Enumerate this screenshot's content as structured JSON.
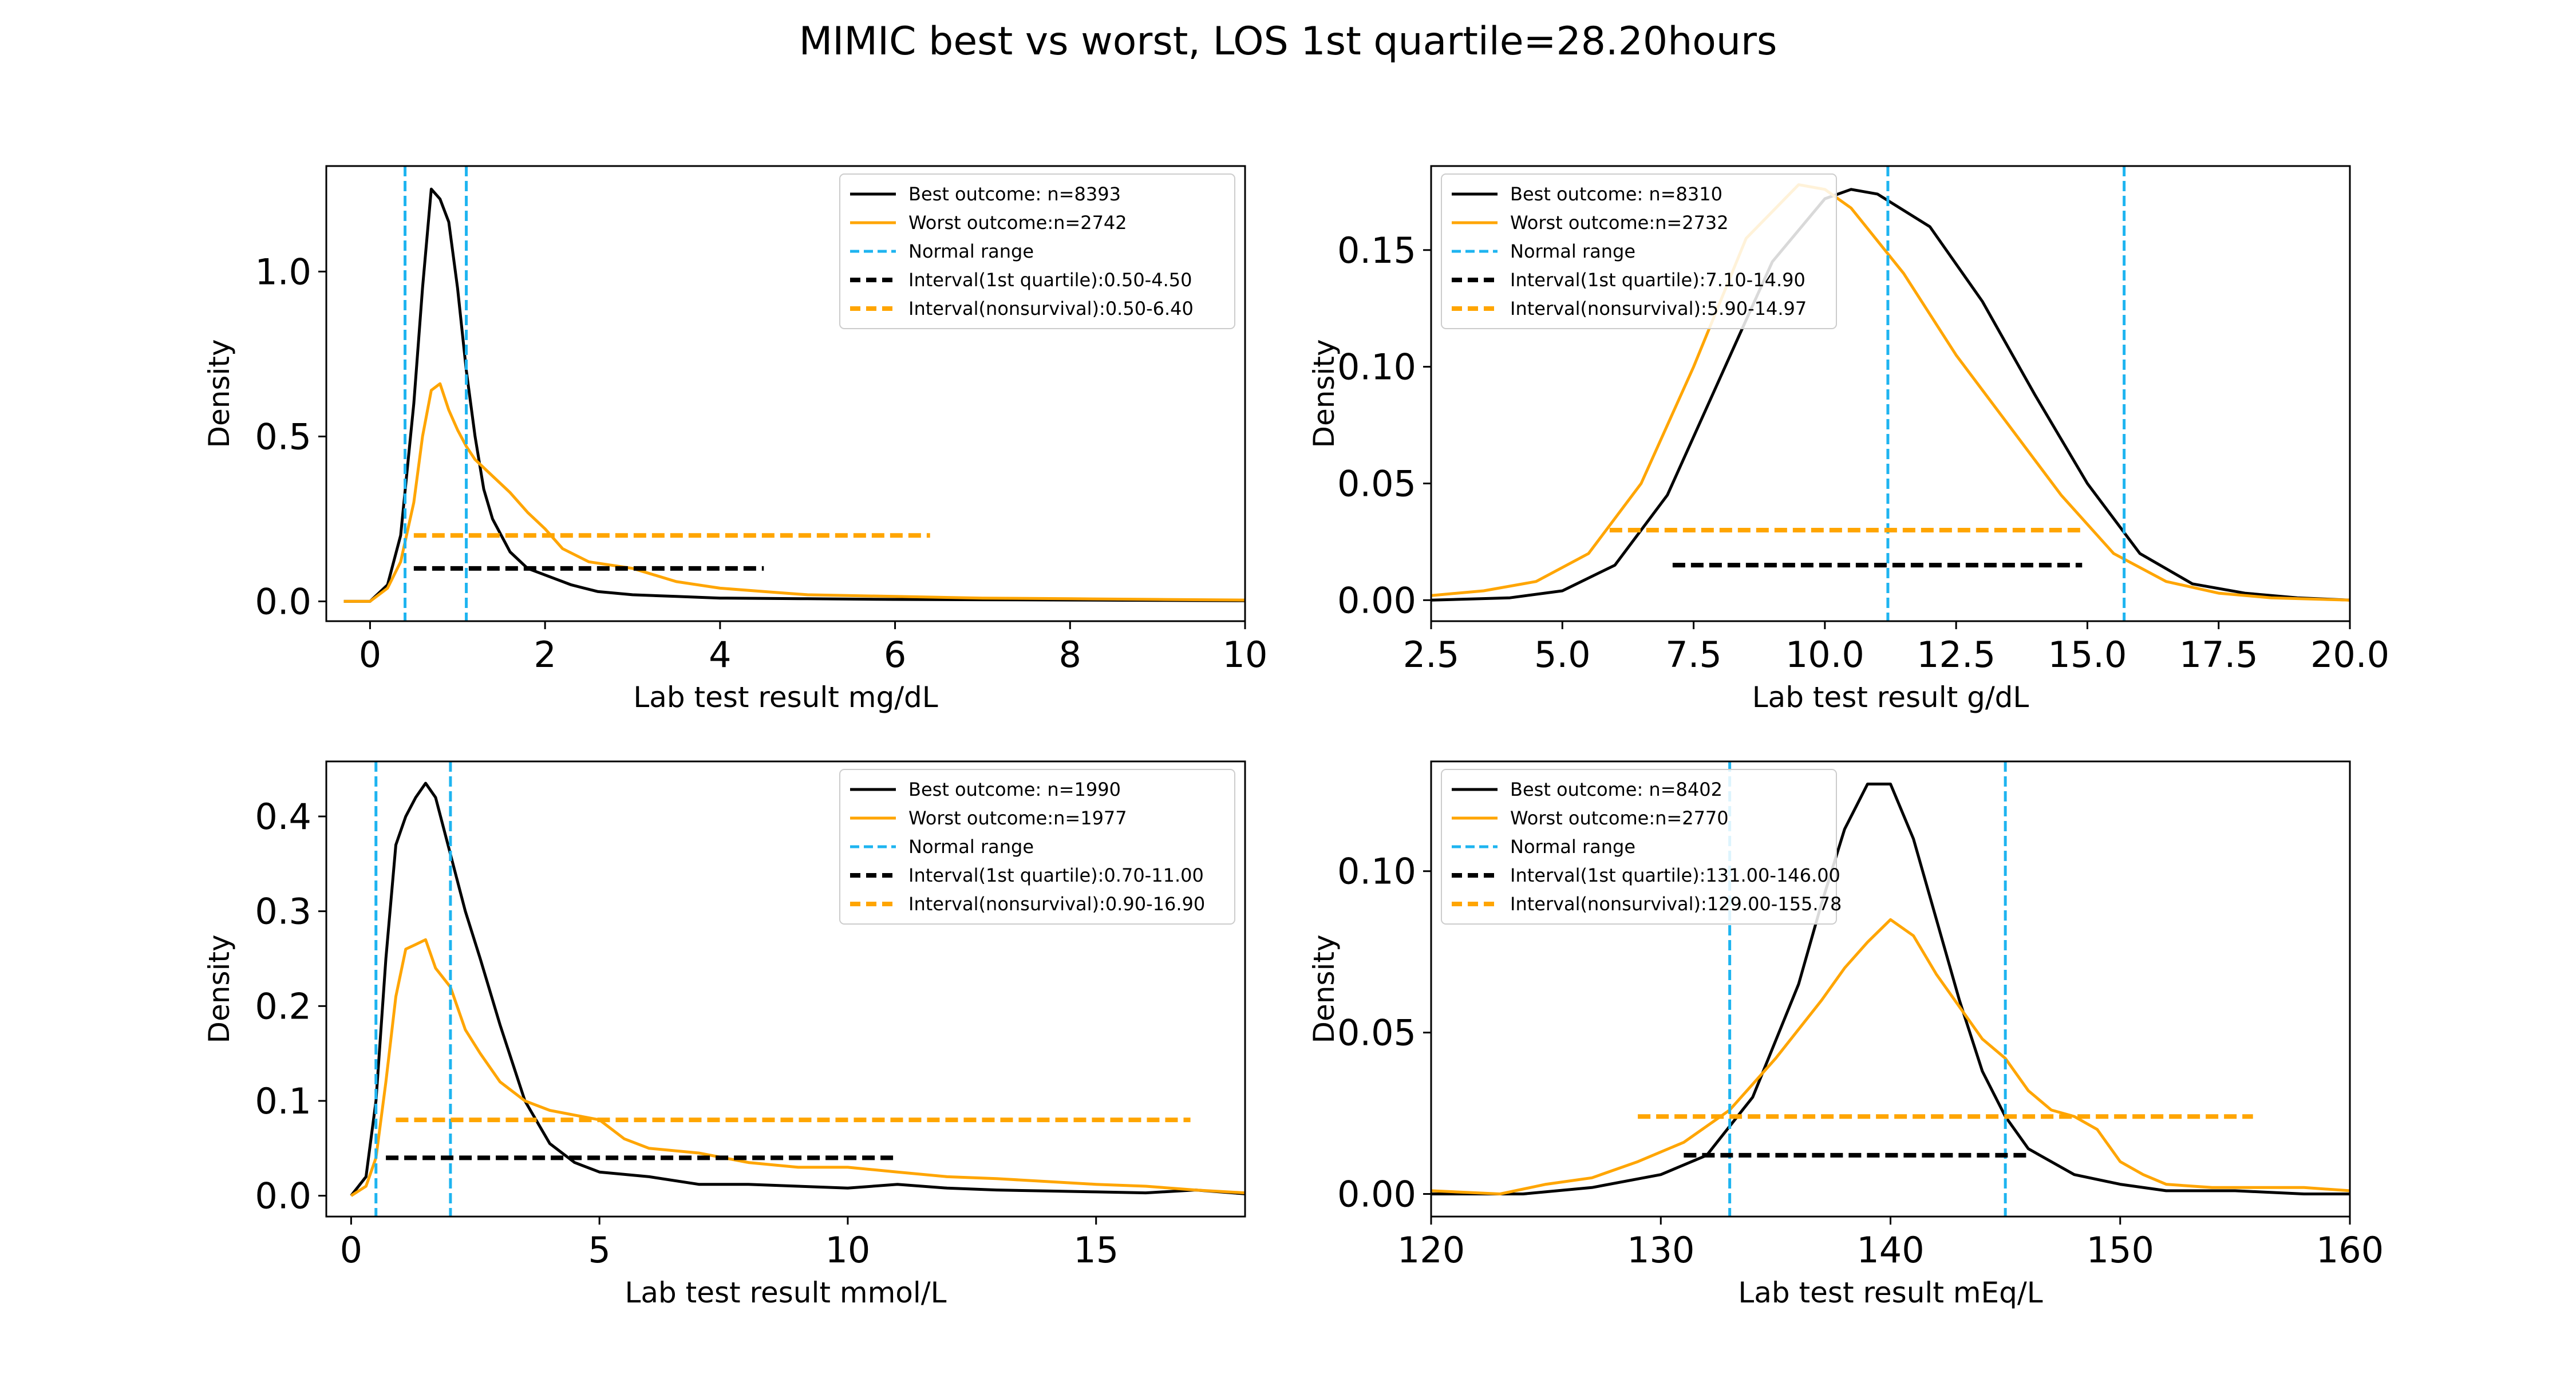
{
  "figure": {
    "title": "MIMIC best vs worst, LOS 1st quartile=28.20hours"
  },
  "colors": {
    "best": "#000000",
    "worst": "#FFA500",
    "normal": "#1EB4F0",
    "interval_best": "#000000",
    "interval_worst": "#FFA500"
  },
  "chart_data": [
    {
      "type": "line",
      "xlabel": "Lab test result mg/dL",
      "ylabel": "Density",
      "xlim": [
        -0.5,
        10
      ],
      "ylim": [
        -0.06,
        1.32
      ],
      "xticks": [
        0,
        2,
        4,
        6,
        8,
        10
      ],
      "yticks": [
        0.0,
        0.5,
        1.0
      ],
      "xtick_labels": [
        "0",
        "2",
        "4",
        "6",
        "8",
        "10"
      ],
      "ytick_labels": [
        "0.0",
        "0.5",
        "1.0"
      ],
      "legend_position": "top-right",
      "series": [
        {
          "name": "Best outcome: n=8393",
          "color_key": "best",
          "x": [
            -0.3,
            0.0,
            0.2,
            0.35,
            0.5,
            0.6,
            0.7,
            0.8,
            0.9,
            1.0,
            1.1,
            1.2,
            1.3,
            1.4,
            1.6,
            1.8,
            2.0,
            2.3,
            2.6,
            3.0,
            3.5,
            4.0,
            5.0,
            6.0,
            7.0,
            8.0,
            9.0,
            10.0
          ],
          "y": [
            0.0,
            0.0,
            0.05,
            0.2,
            0.6,
            0.95,
            1.25,
            1.22,
            1.15,
            0.95,
            0.7,
            0.5,
            0.34,
            0.25,
            0.15,
            0.1,
            0.08,
            0.05,
            0.03,
            0.02,
            0.015,
            0.01,
            0.008,
            0.006,
            0.005,
            0.004,
            0.003,
            0.002
          ]
        },
        {
          "name": "Worst outcome:n=2742",
          "color_key": "worst",
          "x": [
            -0.3,
            0.0,
            0.2,
            0.35,
            0.5,
            0.6,
            0.7,
            0.8,
            0.9,
            1.0,
            1.1,
            1.2,
            1.4,
            1.6,
            1.8,
            2.0,
            2.2,
            2.5,
            3.0,
            3.5,
            4.0,
            4.5,
            5.0,
            6.0,
            7.0,
            8.0,
            9.0,
            10.0
          ],
          "y": [
            0.0,
            0.0,
            0.04,
            0.12,
            0.3,
            0.5,
            0.64,
            0.66,
            0.58,
            0.52,
            0.47,
            0.43,
            0.38,
            0.33,
            0.27,
            0.22,
            0.16,
            0.12,
            0.1,
            0.06,
            0.04,
            0.03,
            0.02,
            0.015,
            0.01,
            0.008,
            0.006,
            0.004
          ]
        },
        {
          "name": "Normal range",
          "kind": "vline",
          "color_key": "normal",
          "positions": [
            0.4,
            1.1
          ]
        },
        {
          "name": "Interval(1st quartile):0.50-4.50",
          "kind": "hline",
          "color_key": "interval_best",
          "y": 0.1,
          "x_range": [
            0.5,
            4.5
          ]
        },
        {
          "name": "Interval(nonsurvival):0.50-6.40",
          "kind": "hline",
          "color_key": "interval_worst",
          "y": 0.2,
          "x_range": [
            0.5,
            6.4
          ]
        }
      ]
    },
    {
      "type": "line",
      "xlabel": "Lab test result g/dL",
      "ylabel": "Density",
      "xlim": [
        2.5,
        20.0
      ],
      "ylim": [
        -0.009,
        0.186
      ],
      "xticks": [
        2.5,
        5.0,
        7.5,
        10.0,
        12.5,
        15.0,
        17.5,
        20.0
      ],
      "yticks": [
        0.0,
        0.05,
        0.1,
        0.15
      ],
      "xtick_labels": [
        "2.5",
        "5.0",
        "7.5",
        "10.0",
        "12.5",
        "15.0",
        "17.5",
        "20.0"
      ],
      "ytick_labels": [
        "0.00",
        "0.05",
        "0.10",
        "0.15"
      ],
      "legend_position": "top-left",
      "series": [
        {
          "name": "Best outcome: n=8310",
          "color_key": "best",
          "x": [
            2.5,
            4.0,
            5.0,
            6.0,
            7.0,
            8.0,
            9.0,
            10.0,
            10.5,
            11.0,
            12.0,
            13.0,
            14.0,
            15.0,
            16.0,
            17.0,
            18.0,
            19.0,
            20.0
          ],
          "y": [
            0.0,
            0.001,
            0.004,
            0.015,
            0.045,
            0.095,
            0.145,
            0.172,
            0.176,
            0.174,
            0.16,
            0.128,
            0.088,
            0.05,
            0.02,
            0.007,
            0.003,
            0.001,
            0.0
          ]
        },
        {
          "name": "Worst outcome:n=2732",
          "color_key": "worst",
          "x": [
            2.5,
            3.5,
            4.5,
            5.5,
            6.5,
            7.5,
            8.5,
            9.5,
            10.0,
            10.5,
            11.5,
            12.5,
            13.5,
            14.5,
            15.5,
            16.5,
            17.5,
            18.5,
            20.0
          ],
          "y": [
            0.002,
            0.004,
            0.008,
            0.02,
            0.05,
            0.1,
            0.155,
            0.178,
            0.176,
            0.168,
            0.14,
            0.105,
            0.075,
            0.045,
            0.02,
            0.008,
            0.003,
            0.001,
            0.0
          ]
        },
        {
          "name": "Normal range",
          "kind": "vline",
          "color_key": "normal",
          "positions": [
            11.2,
            15.7
          ]
        },
        {
          "name": "Interval(1st quartile):7.10-14.90",
          "kind": "hline",
          "color_key": "interval_best",
          "y": 0.015,
          "x_range": [
            7.1,
            14.9
          ]
        },
        {
          "name": "Interval(nonsurvival):5.90-14.97",
          "kind": "hline",
          "color_key": "interval_worst",
          "y": 0.03,
          "x_range": [
            5.9,
            14.97
          ]
        }
      ]
    },
    {
      "type": "line",
      "xlabel": "Lab test result mmol/L",
      "ylabel": "Density",
      "xlim": [
        -0.5,
        18
      ],
      "ylim": [
        -0.022,
        0.458
      ],
      "xticks": [
        0,
        5,
        10,
        15
      ],
      "yticks": [
        0.0,
        0.1,
        0.2,
        0.3,
        0.4
      ],
      "xtick_labels": [
        "0",
        "5",
        "10",
        "15"
      ],
      "ytick_labels": [
        "0.0",
        "0.1",
        "0.2",
        "0.3",
        "0.4"
      ],
      "legend_position": "top-right",
      "series": [
        {
          "name": "Best outcome: n=1990",
          "color_key": "best",
          "x": [
            0.0,
            0.3,
            0.5,
            0.7,
            0.9,
            1.1,
            1.3,
            1.5,
            1.7,
            2.0,
            2.3,
            2.6,
            3.0,
            3.5,
            4.0,
            4.5,
            5.0,
            6.0,
            7.0,
            8.0,
            9.0,
            10.0,
            11.0,
            12.0,
            13.0,
            14.0,
            15.0,
            16.0,
            17.0,
            18.0
          ],
          "y": [
            0.0,
            0.02,
            0.1,
            0.25,
            0.37,
            0.4,
            0.42,
            0.435,
            0.42,
            0.36,
            0.3,
            0.25,
            0.18,
            0.1,
            0.055,
            0.035,
            0.025,
            0.02,
            0.012,
            0.012,
            0.01,
            0.008,
            0.012,
            0.008,
            0.006,
            0.005,
            0.004,
            0.003,
            0.006,
            0.002
          ]
        },
        {
          "name": "Worst outcome:n=1977",
          "color_key": "worst",
          "x": [
            0.0,
            0.3,
            0.5,
            0.7,
            0.9,
            1.1,
            1.3,
            1.5,
            1.7,
            2.0,
            2.3,
            2.6,
            3.0,
            3.5,
            4.0,
            4.5,
            5.0,
            5.5,
            6.0,
            7.0,
            8.0,
            9.0,
            10.0,
            11.0,
            12.0,
            13.0,
            14.0,
            15.0,
            16.0,
            17.0,
            18.0
          ],
          "y": [
            0.0,
            0.01,
            0.04,
            0.12,
            0.21,
            0.26,
            0.265,
            0.27,
            0.24,
            0.22,
            0.175,
            0.15,
            0.12,
            0.1,
            0.09,
            0.085,
            0.08,
            0.06,
            0.05,
            0.045,
            0.035,
            0.03,
            0.03,
            0.025,
            0.02,
            0.018,
            0.015,
            0.012,
            0.01,
            0.006,
            0.003
          ]
        },
        {
          "name": "Normal range",
          "kind": "vline",
          "color_key": "normal",
          "positions": [
            0.5,
            2.0
          ]
        },
        {
          "name": "Interval(1st quartile):0.70-11.00",
          "kind": "hline",
          "color_key": "interval_best",
          "y": 0.04,
          "x_range": [
            0.7,
            11.0
          ]
        },
        {
          "name": "Interval(nonsurvival):0.90-16.90",
          "kind": "hline",
          "color_key": "interval_worst",
          "y": 0.08,
          "x_range": [
            0.9,
            16.9
          ]
        }
      ]
    },
    {
      "type": "line",
      "xlabel": "Lab test result mEq/L",
      "ylabel": "Density",
      "xlim": [
        120,
        160
      ],
      "ylim": [
        -0.007,
        0.134
      ],
      "xticks": [
        120,
        130,
        140,
        150,
        160
      ],
      "yticks": [
        0.0,
        0.05,
        0.1
      ],
      "xtick_labels": [
        "120",
        "130",
        "140",
        "150",
        "160"
      ],
      "ytick_labels": [
        "0.00",
        "0.05",
        "0.10"
      ],
      "legend_position": "top-left",
      "series": [
        {
          "name": "Best outcome: n=8402",
          "color_key": "best",
          "x": [
            120,
            124,
            127,
            130,
            132,
            134,
            136,
            137,
            138,
            139,
            140,
            141,
            142,
            143,
            144,
            145,
            146,
            148,
            150,
            152,
            155,
            158,
            160
          ],
          "y": [
            0.0,
            0.0,
            0.002,
            0.006,
            0.012,
            0.03,
            0.065,
            0.09,
            0.113,
            0.127,
            0.127,
            0.11,
            0.085,
            0.06,
            0.038,
            0.024,
            0.014,
            0.006,
            0.003,
            0.001,
            0.001,
            0.0,
            0.0
          ]
        },
        {
          "name": "Worst outcome:n=2770",
          "color_key": "worst",
          "x": [
            120,
            123,
            125,
            127,
            129,
            131,
            133,
            135,
            137,
            138,
            139,
            140,
            141,
            142,
            143,
            144,
            145,
            146,
            147,
            148,
            149,
            150,
            151,
            152,
            154,
            156,
            158,
            160
          ],
          "y": [
            0.001,
            0.0,
            0.003,
            0.005,
            0.01,
            0.016,
            0.026,
            0.042,
            0.06,
            0.07,
            0.078,
            0.085,
            0.08,
            0.068,
            0.058,
            0.048,
            0.042,
            0.032,
            0.026,
            0.024,
            0.02,
            0.01,
            0.006,
            0.003,
            0.002,
            0.002,
            0.002,
            0.001
          ]
        },
        {
          "name": "Normal range",
          "kind": "vline",
          "color_key": "normal",
          "positions": [
            133,
            145
          ]
        },
        {
          "name": "Interval(1st quartile):131.00-146.00",
          "kind": "hline",
          "color_key": "interval_best",
          "y": 0.012,
          "x_range": [
            131,
            146
          ]
        },
        {
          "name": "Interval(nonsurvival):129.00-155.78",
          "kind": "hline",
          "color_key": "interval_worst",
          "y": 0.024,
          "x_range": [
            129,
            155.78
          ]
        }
      ]
    }
  ]
}
